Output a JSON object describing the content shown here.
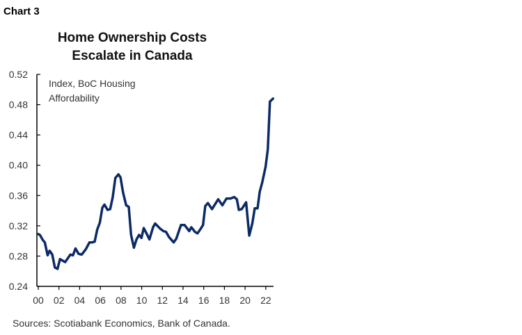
{
  "chart_label": "Chart 3",
  "chart_data": {
    "type": "line",
    "title": "Home Ownership Costs Escalate in Canada",
    "title_lines": [
      "Home Ownership Costs",
      "Escalate in Canada"
    ],
    "annotation_lines": [
      "Index, BoC Housing",
      "Affordability"
    ],
    "xlabel": "",
    "ylabel": "",
    "xlim": [
      2000,
      2022.75
    ],
    "ylim": [
      0.24,
      0.52
    ],
    "yticks": [
      "0.24",
      "0.28",
      "0.32",
      "0.36",
      "0.40",
      "0.44",
      "0.48",
      "0.52"
    ],
    "xtick_labels": [
      "00",
      "02",
      "04",
      "06",
      "08",
      "10",
      "12",
      "14",
      "16",
      "18",
      "20",
      "22"
    ],
    "grid": false,
    "line_color": "#0b2a66",
    "series": [
      {
        "x": [
          2000.0,
          2000.15,
          2000.45,
          2000.63,
          2000.9,
          2001.1,
          2001.35,
          2001.6,
          2001.86,
          2002.1,
          2002.6,
          2003.1,
          2003.35,
          2003.6,
          2003.9,
          2004.2,
          2004.6,
          2004.95,
          2005.2,
          2005.45,
          2005.7,
          2005.95,
          2006.2,
          2006.4,
          2006.7,
          2006.95,
          2007.2,
          2007.45,
          2007.75,
          2007.95,
          2008.2,
          2008.5,
          2008.75,
          2008.97,
          2009.25,
          2009.5,
          2009.75,
          2009.98,
          2010.2,
          2010.5,
          2010.75,
          2011.1,
          2011.3,
          2011.8,
          2012.1,
          2012.35,
          2012.65,
          2013.1,
          2013.35,
          2013.8,
          2014.15,
          2014.6,
          2014.8,
          2015.15,
          2015.4,
          2015.7,
          2015.93,
          2016.15,
          2016.4,
          2016.8,
          2017.4,
          2017.8,
          2018.2,
          2018.6,
          2018.95,
          2019.2,
          2019.4,
          2019.67,
          2020.1,
          2020.4,
          2020.7,
          2020.93,
          2021.2,
          2021.42,
          2021.65,
          2021.98,
          2022.2,
          2022.4,
          2022.7
        ],
        "values": [
          0.309,
          0.308,
          0.301,
          0.298,
          0.281,
          0.287,
          0.282,
          0.265,
          0.263,
          0.276,
          0.272,
          0.282,
          0.281,
          0.29,
          0.283,
          0.282,
          0.289,
          0.298,
          0.298,
          0.299,
          0.315,
          0.324,
          0.344,
          0.348,
          0.341,
          0.342,
          0.358,
          0.383,
          0.388,
          0.384,
          0.364,
          0.347,
          0.345,
          0.308,
          0.291,
          0.302,
          0.308,
          0.304,
          0.317,
          0.309,
          0.302,
          0.318,
          0.323,
          0.316,
          0.313,
          0.312,
          0.305,
          0.298,
          0.303,
          0.321,
          0.321,
          0.313,
          0.318,
          0.312,
          0.31,
          0.316,
          0.321,
          0.346,
          0.35,
          0.342,
          0.355,
          0.347,
          0.356,
          0.356,
          0.358,
          0.355,
          0.341,
          0.342,
          0.351,
          0.307,
          0.323,
          0.343,
          0.343,
          0.365,
          0.377,
          0.398,
          0.421,
          0.484,
          0.488
        ]
      }
    ]
  },
  "source": "Sources: Scotiabank Economics, Bank of Canada."
}
